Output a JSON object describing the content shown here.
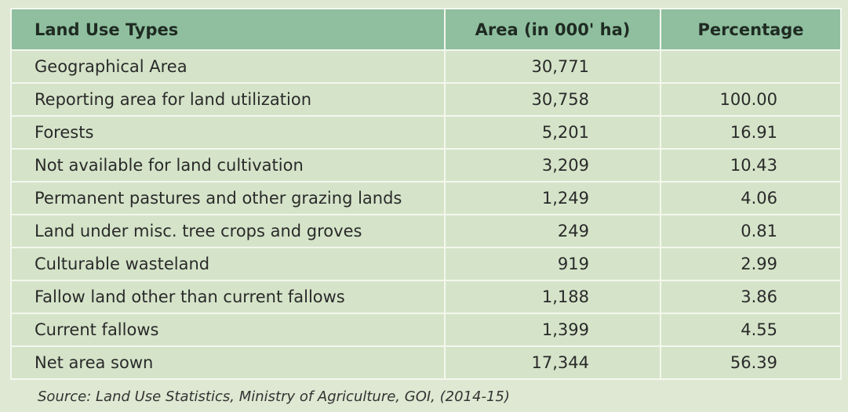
{
  "table": {
    "headers": {
      "type": "Land Use Types",
      "area": "Area (in 000' ha)",
      "percentage": "Percentage"
    },
    "rows": [
      {
        "type": "Geographical Area",
        "area": "30,771",
        "percentage": ""
      },
      {
        "type": "Reporting area for land utilization",
        "area": "30,758",
        "percentage": "100.00"
      },
      {
        "type": "Forests",
        "area": "5,201",
        "percentage": "16.91"
      },
      {
        "type": "Not available for land cultivation",
        "area": "3,209",
        "percentage": "10.43"
      },
      {
        "type": "Permanent pastures and other grazing lands",
        "area": "1,249",
        "percentage": "4.06"
      },
      {
        "type": "Land under misc. tree crops and groves",
        "area": "249",
        "percentage": "0.81"
      },
      {
        "type": "Culturable wasteland",
        "area": "919",
        "percentage": "2.99"
      },
      {
        "type": "Fallow land other than current fallows",
        "area": "1,188",
        "percentage": "3.86"
      },
      {
        "type": "Current fallows",
        "area": "1,399",
        "percentage": "4.55"
      },
      {
        "type": "Net area sown",
        "area": "17,344",
        "percentage": "56.39"
      }
    ]
  },
  "source": "Source: Land Use Statistics, Ministry of Agriculture, GOI, (2014-15)",
  "colors": {
    "header_bg": "#8fbf9f",
    "row_bg": "#d5e4c9",
    "page_bg": "#dfe8d2",
    "grid_line": "#f4f7ee"
  }
}
